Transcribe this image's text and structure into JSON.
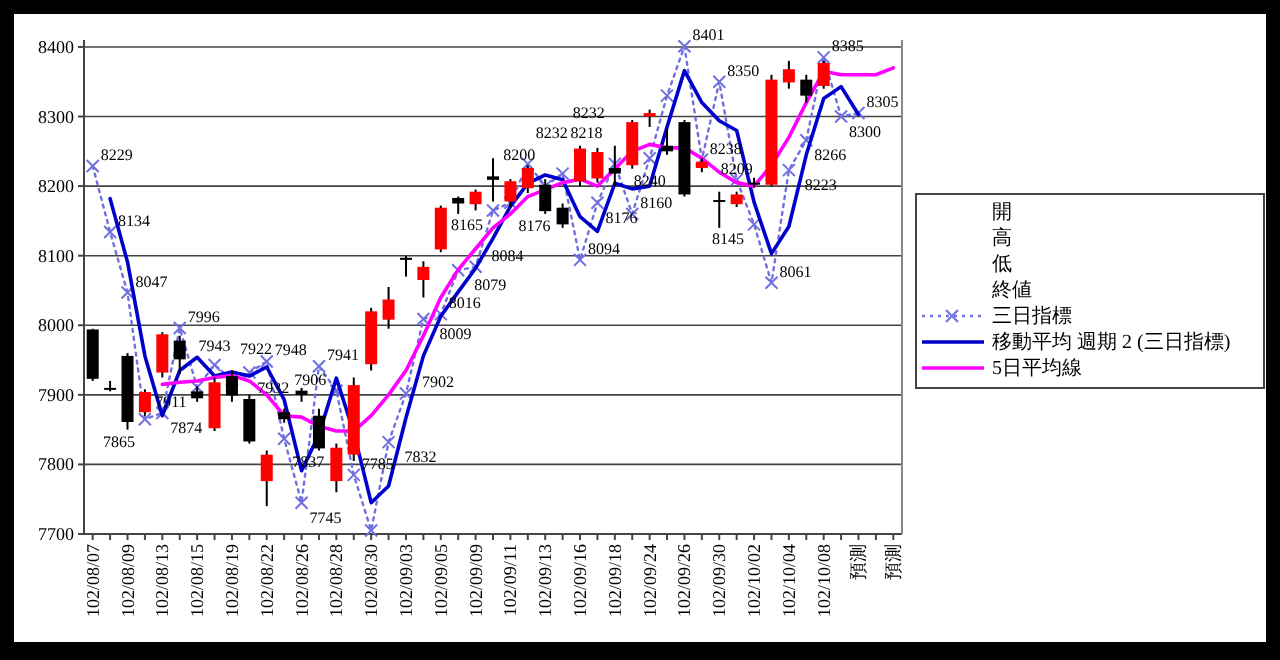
{
  "chart_data": {
    "type": "candlestick",
    "categories": [
      "102/08/07",
      null,
      "102/08/09",
      null,
      "102/08/13",
      null,
      "102/08/15",
      null,
      "102/08/19",
      null,
      "102/08/22",
      null,
      "102/08/26",
      null,
      "102/08/28",
      null,
      "102/08/30",
      null,
      "102/09/03",
      null,
      "102/09/05",
      null,
      "102/09/09",
      null,
      "102/09/11",
      null,
      "102/09/13",
      null,
      "102/09/16",
      null,
      "102/09/18",
      null,
      "102/09/24",
      null,
      "102/09/26",
      null,
      "102/09/30",
      null,
      "102/10/02",
      null,
      "102/10/04",
      null,
      "102/10/08",
      null,
      "預測",
      null,
      "預測"
    ],
    "ohlc": [
      [
        7994,
        7995,
        7920,
        7923
      ],
      [
        7910,
        7920,
        7905,
        7910
      ],
      [
        7956,
        7960,
        7850,
        7861
      ],
      [
        7875,
        7908,
        7870,
        7904
      ],
      [
        7932,
        7990,
        7925,
        7987
      ],
      [
        7978,
        7985,
        7930,
        7951
      ],
      [
        7905,
        7912,
        7890,
        7895
      ],
      [
        7852,
        7925,
        7848,
        7918
      ],
      [
        7927,
        7935,
        7890,
        7899
      ],
      [
        7894,
        7900,
        7830,
        7833
      ],
      [
        7776,
        7820,
        7740,
        7814
      ],
      [
        7875,
        7880,
        7860,
        7865
      ],
      [
        7906,
        7910,
        7890,
        7900
      ],
      [
        7870,
        7880,
        7820,
        7823
      ],
      [
        7776,
        7830,
        7760,
        7824
      ],
      [
        7814,
        7925,
        7805,
        7914
      ],
      [
        7944,
        8025,
        7935,
        8020
      ],
      [
        8008,
        8055,
        7995,
        8037
      ],
      [
        8097,
        8100,
        8070,
        8094
      ],
      [
        8065,
        8092,
        8040,
        8084
      ],
      [
        8109,
        8172,
        8105,
        8169
      ],
      [
        8183,
        8185,
        8160,
        8175
      ],
      [
        8174,
        8195,
        8165,
        8192
      ],
      [
        8214,
        8240,
        8178,
        8209
      ],
      [
        8178,
        8210,
        8170,
        8207
      ],
      [
        8197,
        8230,
        8190,
        8226
      ],
      [
        8202,
        8210,
        8160,
        8164
      ],
      [
        8169,
        8175,
        8140,
        8145
      ],
      [
        8207,
        8258,
        8200,
        8254
      ],
      [
        8211,
        8255,
        8205,
        8249
      ],
      [
        8226,
        8258,
        8200,
        8218
      ],
      [
        8230,
        8295,
        8225,
        8292
      ],
      [
        8300,
        8310,
        8285,
        8305
      ],
      [
        8258,
        8282,
        8245,
        8250
      ],
      [
        8292,
        8295,
        8185,
        8188
      ],
      [
        8226,
        8240,
        8220,
        8235
      ],
      [
        8180,
        8192,
        8140,
        8178
      ],
      [
        8174,
        8192,
        8170,
        8188
      ],
      [
        8205,
        8212,
        8198,
        8205
      ],
      [
        8202,
        8360,
        8200,
        8353
      ],
      [
        8349,
        8380,
        8340,
        8368
      ],
      [
        8353,
        8360,
        8320,
        8330
      ],
      [
        8344,
        8380,
        8340,
        8377
      ],
      null,
      null,
      null,
      null
    ],
    "colors": [
      "#000000",
      "#000000",
      "#000000",
      "#ff0000",
      "#ff0000",
      "#000000",
      "#000000",
      "#ff0000",
      "#000000",
      "#000000",
      "#ff0000",
      "#000000",
      "#000000",
      "#000000",
      "#ff0000",
      "#ff0000",
      "#ff0000",
      "#ff0000",
      "#000000",
      "#ff0000",
      "#ff0000",
      "#000000",
      "#ff0000",
      "#000000",
      "#ff0000",
      "#ff0000",
      "#000000",
      "#000000",
      "#ff0000",
      "#ff0000",
      "#000000",
      "#ff0000",
      "#ff0000",
      "#000000",
      "#000000",
      "#ff0000",
      "#000000",
      "#ff0000",
      "#000000",
      "#ff0000",
      "#ff0000",
      "#000000",
      "#ff0000",
      null,
      null,
      null,
      null
    ],
    "series": [
      {
        "name": "三日指標",
        "type": "line",
        "color": "#7070e0",
        "line_style": "dotted",
        "marker": "cross",
        "values": [
          8229,
          8134,
          8047,
          7865,
          7874,
          7996,
          7911,
          7943,
          7922,
          7932,
          7948,
          7837,
          7745,
          7941,
          7906,
          7785,
          7705,
          7832,
          7902,
          8009,
          8016,
          8079,
          8084,
          8165,
          8176,
          8232,
          8200,
          8218,
          8094,
          8176,
          8232,
          8160,
          8240,
          8330,
          8401,
          8238,
          8350,
          8209,
          8145,
          8061,
          8223,
          8266,
          8385,
          8300,
          8305,
          null,
          null
        ],
        "value_labels": [
          "8229",
          "8134",
          "8047",
          "7865",
          "7874",
          "7996",
          "7911",
          "7943",
          "7922",
          "7932",
          "7948",
          "7837",
          "7745",
          "7941",
          "7906",
          "7785",
          null,
          "7832",
          "7902",
          "8009",
          "8016",
          "8079",
          "8084",
          "8165",
          "8176",
          "8232",
          "8200",
          "8218",
          "8094",
          "8176",
          "8232",
          "8160",
          "8240",
          null,
          "8401",
          "8238",
          "8350",
          "8209",
          "8145",
          "8061",
          "8223",
          "8266",
          "8385",
          "8300",
          "8305",
          null,
          null
        ]
      },
      {
        "name": "移動平均 週期 2 (三日指標)",
        "type": "line",
        "color": "#0000cc",
        "values": [
          null,
          8182,
          8091,
          7956,
          7870,
          7935,
          7954,
          7927,
          7933,
          7927,
          7940,
          7893,
          7791,
          7843,
          7924,
          7846,
          7745,
          7769,
          7867,
          7956,
          8013,
          8048,
          8082,
          8125,
          8171,
          8204,
          8216,
          8209,
          8156,
          8135,
          8204,
          8196,
          8200,
          8285,
          8366,
          8320,
          8294,
          8280,
          8177,
          8103,
          8142,
          8245,
          8326,
          8343,
          8303,
          null,
          null
        ]
      },
      {
        "name": "5日平均線",
        "type": "line",
        "color": "#ff00ff",
        "values": [
          null,
          null,
          null,
          null,
          7915,
          7918,
          7920,
          7925,
          7928,
          7920,
          7900,
          7870,
          7868,
          7855,
          7848,
          7848,
          7870,
          7900,
          7935,
          7985,
          8040,
          8080,
          8110,
          8140,
          8160,
          8185,
          8195,
          8205,
          8210,
          8200,
          8225,
          8250,
          8260,
          8255,
          8255,
          8240,
          8220,
          8205,
          8200,
          8230,
          8270,
          8320,
          8365,
          8360,
          8360,
          8360,
          8370
        ]
      }
    ],
    "annotations": [
      "開",
      "高",
      "低",
      "終値"
    ],
    "ylim": [
      7700,
      8410
    ],
    "yticks": [
      7700,
      7800,
      7900,
      8000,
      8100,
      8200,
      8300,
      8400
    ],
    "grid": "y",
    "legend": "right"
  }
}
